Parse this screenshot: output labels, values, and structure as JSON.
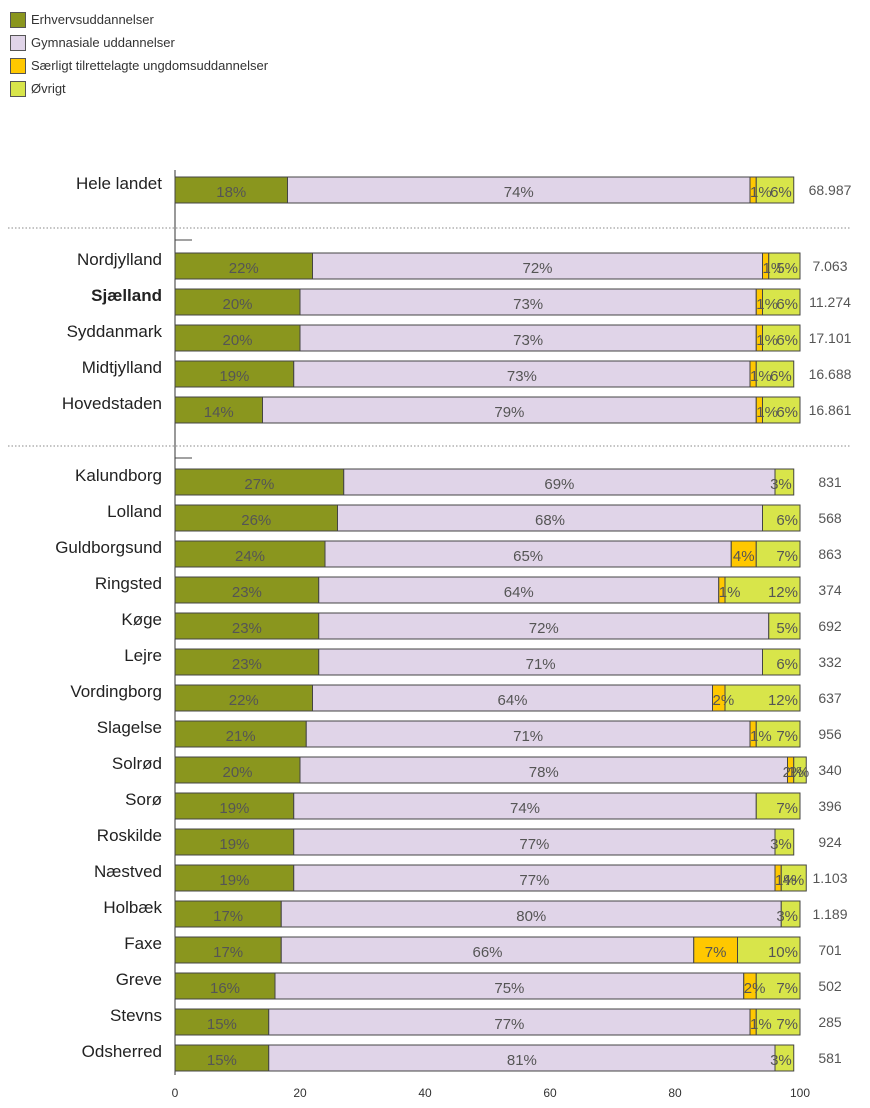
{
  "chart_data": {
    "type": "bar",
    "orientation": "horizontal",
    "stacked": true,
    "series": [
      {
        "name": "Erhvervsuddannelser",
        "color": "#8a961e"
      },
      {
        "name": "Gymnasiale uddannelser",
        "color": "#e0d4e8"
      },
      {
        "name": "Særligt tilrettelagte ungdomsuddannelser",
        "color": "#ffc800"
      },
      {
        "name": "Øvrigt",
        "color": "#d8e54a"
      }
    ],
    "rows": [
      {
        "label": "Hele landet",
        "bold": false,
        "values": [
          18,
          74,
          1,
          6
        ],
        "labels": [
          "18%",
          "74%",
          "1%",
          "6%"
        ],
        "total": "68.987"
      },
      {
        "label": "Nordjylland",
        "bold": false,
        "values": [
          22,
          72,
          1,
          5
        ],
        "labels": [
          "22%",
          "72%",
          "1%",
          "5%"
        ],
        "total": "7.063"
      },
      {
        "label": "Sjælland",
        "bold": true,
        "values": [
          20,
          73,
          1,
          6
        ],
        "labels": [
          "20%",
          "73%",
          "1%",
          "6%"
        ],
        "total": "11.274"
      },
      {
        "label": "Syddanmark",
        "bold": false,
        "values": [
          20,
          73,
          1,
          6
        ],
        "labels": [
          "20%",
          "73%",
          "1%",
          "6%"
        ],
        "total": "17.101"
      },
      {
        "label": "Midtjylland",
        "bold": false,
        "values": [
          19,
          73,
          1,
          6
        ],
        "labels": [
          "19%",
          "73%",
          "1%",
          "6%"
        ],
        "total": "16.688"
      },
      {
        "label": "Hovedstaden",
        "bold": false,
        "values": [
          14,
          79,
          1,
          6
        ],
        "labels": [
          "14%",
          "79%",
          "1%",
          "6%"
        ],
        "total": "16.861"
      },
      {
        "label": "Kalundborg",
        "bold": false,
        "values": [
          27,
          69,
          0,
          3
        ],
        "labels": [
          "27%",
          "69%",
          "",
          "3%"
        ],
        "total": "831"
      },
      {
        "label": "Lolland",
        "bold": false,
        "values": [
          26,
          68,
          0,
          6
        ],
        "labels": [
          "26%",
          "68%",
          "",
          "6%"
        ],
        "total": "568"
      },
      {
        "label": "Guldborgsund",
        "bold": false,
        "values": [
          24,
          65,
          4,
          7
        ],
        "labels": [
          "24%",
          "65%",
          "4%",
          "7%"
        ],
        "total": "863"
      },
      {
        "label": "Ringsted",
        "bold": false,
        "values": [
          23,
          64,
          1,
          12
        ],
        "labels": [
          "23%",
          "64%",
          "1%",
          "12%"
        ],
        "total": "374"
      },
      {
        "label": "Køge",
        "bold": false,
        "values": [
          23,
          72,
          0,
          5
        ],
        "labels": [
          "23%",
          "72%",
          "",
          "5%"
        ],
        "total": "692"
      },
      {
        "label": "Lejre",
        "bold": false,
        "values": [
          23,
          71,
          0,
          6
        ],
        "labels": [
          "23%",
          "71%",
          "",
          "6%"
        ],
        "total": "332"
      },
      {
        "label": "Vordingborg",
        "bold": false,
        "values": [
          22,
          64,
          2,
          12
        ],
        "labels": [
          "22%",
          "64%",
          "2%",
          "12%"
        ],
        "total": "637"
      },
      {
        "label": "Slagelse",
        "bold": false,
        "values": [
          21,
          71,
          1,
          7
        ],
        "labels": [
          "21%",
          "71%",
          "1%",
          "7%"
        ],
        "total": "956"
      },
      {
        "label": "Solrød",
        "bold": false,
        "values": [
          20,
          78,
          1,
          2
        ],
        "labels": [
          "20%",
          "78%",
          "1%",
          "2%"
        ],
        "total": "340"
      },
      {
        "label": "Sorø",
        "bold": false,
        "values": [
          19,
          74,
          0,
          7
        ],
        "labels": [
          "19%",
          "74%",
          "",
          "7%"
        ],
        "total": "396"
      },
      {
        "label": "Roskilde",
        "bold": false,
        "values": [
          19,
          77,
          0,
          3
        ],
        "labels": [
          "19%",
          "77%",
          "",
          "3%"
        ],
        "total": "924"
      },
      {
        "label": "Næstved",
        "bold": false,
        "values": [
          19,
          77,
          1,
          4
        ],
        "labels": [
          "19%",
          "77%",
          "1%",
          "4%"
        ],
        "total": "1.103"
      },
      {
        "label": "Holbæk",
        "bold": false,
        "values": [
          17,
          80,
          0,
          3
        ],
        "labels": [
          "17%",
          "80%",
          "",
          "3%"
        ],
        "total": "1.189"
      },
      {
        "label": "Faxe",
        "bold": false,
        "values": [
          17,
          66,
          7,
          10
        ],
        "labels": [
          "17%",
          "66%",
          "7%",
          "10%"
        ],
        "total": "701"
      },
      {
        "label": "Greve",
        "bold": false,
        "values": [
          16,
          75,
          2,
          7
        ],
        "labels": [
          "16%",
          "75%",
          "2%",
          "7%"
        ],
        "total": "502"
      },
      {
        "label": "Stevns",
        "bold": false,
        "values": [
          15,
          77,
          1,
          7
        ],
        "labels": [
          "15%",
          "77%",
          "1%",
          "7%"
        ],
        "total": "285"
      },
      {
        "label": "Odsherred",
        "bold": false,
        "values": [
          15,
          81,
          0,
          3
        ],
        "labels": [
          "15%",
          "81%",
          "",
          "3%"
        ],
        "total": "581"
      }
    ],
    "group_breaks_after": [
      "Hele landet",
      "Hovedstaden"
    ],
    "xlim": [
      0,
      100
    ],
    "xticks": [
      "0",
      "20",
      "40",
      "60",
      "80",
      "100"
    ],
    "legend": "top-left",
    "grid": false
  }
}
